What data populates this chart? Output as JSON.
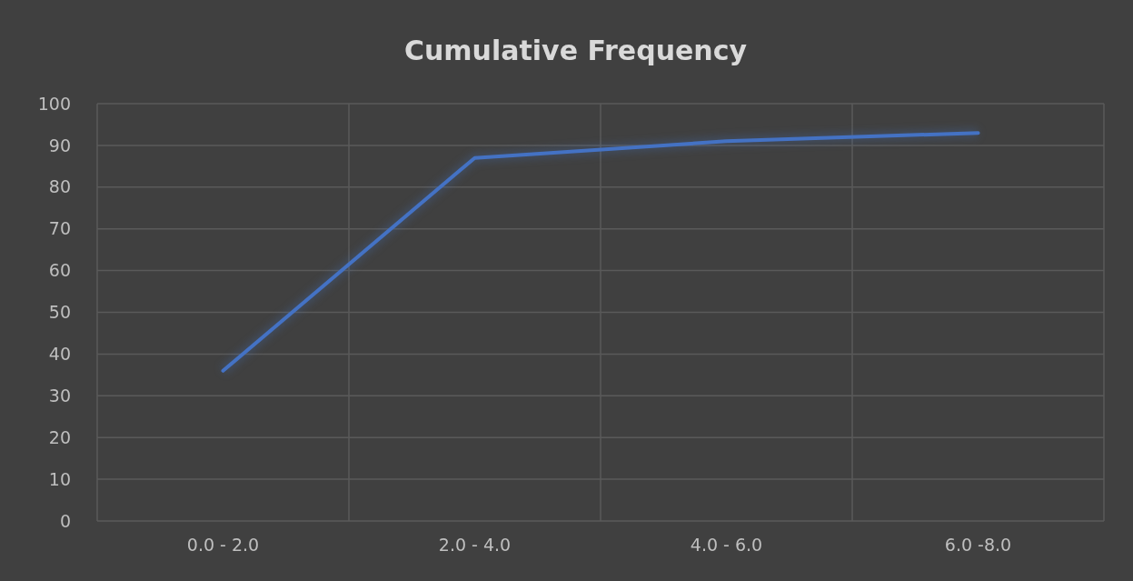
{
  "chart_data": {
    "type": "line",
    "title": "Cumulative Frequency",
    "categories": [
      "0.0 - 2.0",
      "2.0 - 4.0",
      "4.0 - 6.0",
      "6.0 -8.0"
    ],
    "series": [
      {
        "color": "#4472c4",
        "values": [
          36,
          87,
          91,
          93
        ]
      }
    ],
    "ylim": [
      0,
      100
    ],
    "yticks": [
      0,
      10,
      20,
      30,
      40,
      50,
      60,
      70,
      80,
      90,
      100
    ],
    "grid": true,
    "marker": "none",
    "line_style": "solid"
  }
}
